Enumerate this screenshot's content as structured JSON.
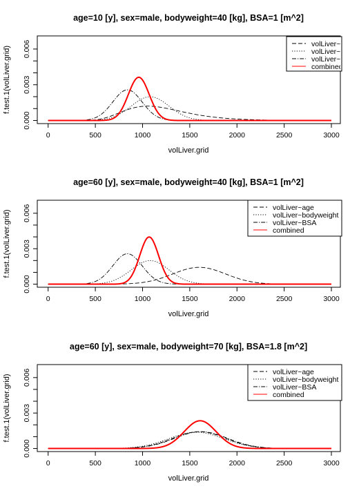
{
  "chart_data": [
    {
      "type": "line",
      "title": "age=10 [y], sex=male, bodyweight=40 [kg], BSA=1 [m^2]",
      "xlabel": "volLiver.grid",
      "ylabel": "f.test.1(volLiver.grid)",
      "xlim": [
        0,
        3000
      ],
      "ylim": [
        0,
        0.0068
      ],
      "xticks": [
        "0",
        "500",
        "1000",
        "1500",
        "2000",
        "2500",
        "3000"
      ],
      "yticks": [
        "0.000",
        "0.003",
        "0.006"
      ],
      "legend": {
        "position": "top-right",
        "clipped": true
      },
      "series": [
        {
          "name": "volLiver~age",
          "display_name": "volLiver~age",
          "dash": "6,3",
          "color": "#000000",
          "width": 0.9,
          "curve": {
            "type": "lognormal",
            "mu": 7.05,
            "sigma": 0.3
          }
        },
        {
          "name": "volLiver~bodyweight",
          "display_name": "volLiver~bod",
          "dash": "1.2,2.2",
          "color": "#000000",
          "width": 0.9,
          "curve": {
            "type": "normal",
            "mean": 1080,
            "sd": 200
          }
        },
        {
          "name": "volLiver~BSA",
          "display_name": "volLiver~BSA",
          "dash": "6,2,1.2,2",
          "color": "#000000",
          "width": 0.9,
          "curve": {
            "type": "normal",
            "mean": 840,
            "sd": 155
          }
        },
        {
          "name": "combined",
          "display_name": "combined",
          "dash": "",
          "color": "#ff0000",
          "width": 2,
          "curve": {
            "type": "normal",
            "mean": 960,
            "sd": 110
          }
        }
      ]
    },
    {
      "type": "line",
      "title": "age=60 [y], sex=male, bodyweight=40 [kg], BSA=1 [m^2]",
      "xlabel": "volLiver.grid",
      "ylabel": "f.test.1(volLiver.grid)",
      "xlim": [
        0,
        3000
      ],
      "ylim": [
        0,
        0.0068
      ],
      "xticks": [
        "0",
        "500",
        "1000",
        "1500",
        "2000",
        "2500",
        "3000"
      ],
      "yticks": [
        "0.000",
        "0.003",
        "0.006"
      ],
      "legend": {
        "position": "top-right",
        "clipped": false
      },
      "series": [
        {
          "name": "volLiver~age",
          "display_name": "volLiver~age",
          "dash": "6,3",
          "color": "#000000",
          "width": 0.9,
          "curve": {
            "type": "normal",
            "mean": 1600,
            "sd": 280
          }
        },
        {
          "name": "volLiver~bodyweight",
          "display_name": "volLiver~bodyweight",
          "dash": "1.2,2.2",
          "color": "#000000",
          "width": 0.9,
          "curve": {
            "type": "normal",
            "mean": 1080,
            "sd": 200
          }
        },
        {
          "name": "volLiver~BSA",
          "display_name": "volLiver~BSA",
          "dash": "6,2,1.2,2",
          "color": "#000000",
          "width": 0.9,
          "curve": {
            "type": "normal",
            "mean": 840,
            "sd": 155
          }
        },
        {
          "name": "combined",
          "display_name": "combined",
          "dash": "",
          "color": "#ff0000",
          "width": 2,
          "curve": {
            "type": "normal",
            "mean": 1070,
            "sd": 100
          }
        }
      ]
    },
    {
      "type": "line",
      "title": "age=60 [y], sex=male, bodyweight=70 [kg], BSA=1.8 [m^2]",
      "xlabel": "volLiver.grid",
      "ylabel": "f.test.1(volLiver.grid)",
      "xlim": [
        0,
        3000
      ],
      "ylim": [
        0,
        0.0068
      ],
      "xticks": [
        "0",
        "500",
        "1000",
        "1500",
        "2000",
        "2500",
        "3000"
      ],
      "yticks": [
        "0.000",
        "0.003",
        "0.006"
      ],
      "legend": {
        "position": "top-right",
        "clipped": false
      },
      "series": [
        {
          "name": "volLiver~age",
          "display_name": "volLiver~age",
          "dash": "6,3",
          "color": "#000000",
          "width": 0.9,
          "curve": {
            "type": "normal",
            "mean": 1600,
            "sd": 280
          }
        },
        {
          "name": "volLiver~bodyweight",
          "display_name": "volLiver~bodyweight",
          "dash": "1.2,2.2",
          "color": "#000000",
          "width": 0.9,
          "curve": {
            "type": "normal",
            "mean": 1570,
            "sd": 290
          }
        },
        {
          "name": "volLiver~BSA",
          "display_name": "volLiver~BSA",
          "dash": "6,2,1.2,2",
          "color": "#000000",
          "width": 0.9,
          "curve": {
            "type": "normal",
            "mean": 1620,
            "sd": 280
          }
        },
        {
          "name": "combined",
          "display_name": "combined",
          "dash": "",
          "color": "#ff0000",
          "width": 2,
          "curve": {
            "type": "normal",
            "mean": 1610,
            "sd": 170
          }
        }
      ]
    }
  ]
}
